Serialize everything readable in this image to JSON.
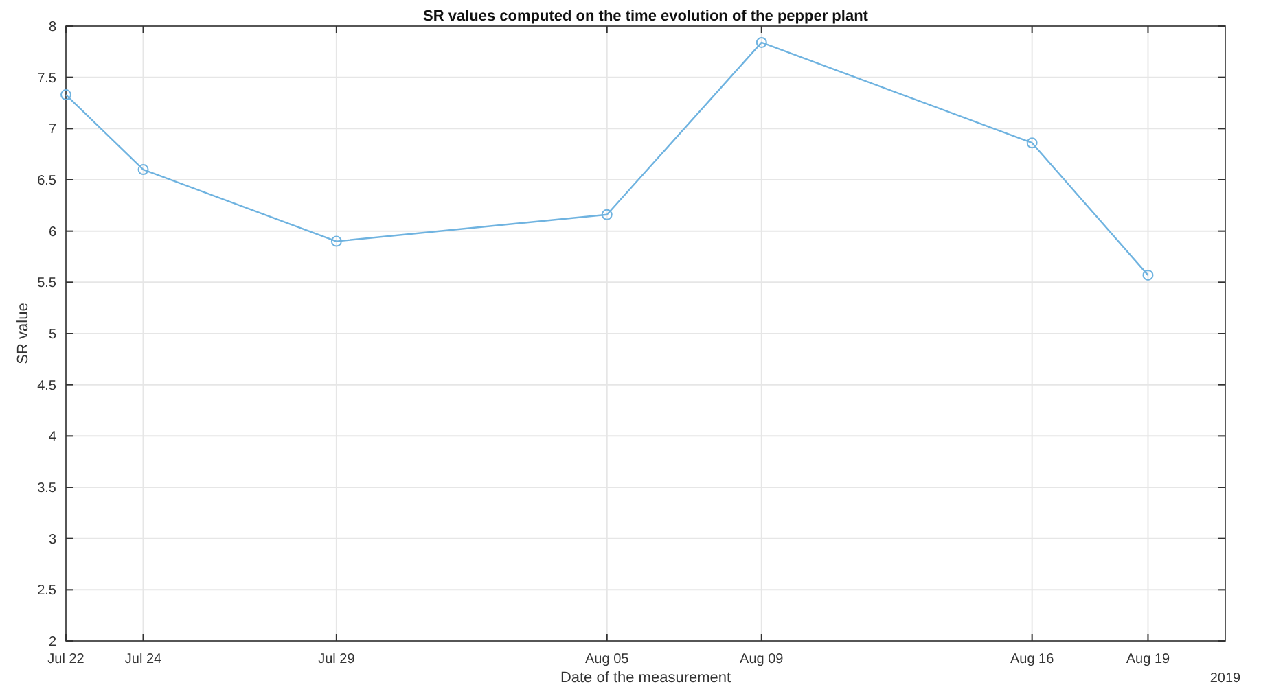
{
  "chart_data": {
    "type": "line",
    "title": "SR values computed on the time evolution of the pepper plant",
    "xlabel": "Date of the measurement",
    "ylabel": "SR value",
    "annotations": [
      "2019"
    ],
    "x": [
      "2019-07-22",
      "2019-07-24",
      "2019-07-29",
      "2019-08-05",
      "2019-08-09",
      "2019-08-16",
      "2019-08-19"
    ],
    "series": [
      {
        "color": "#6fb3e0",
        "values": [
          7.33,
          6.6,
          5.9,
          6.16,
          7.84,
          6.86,
          5.57
        ]
      }
    ],
    "xlim": [
      "2019-07-22",
      "2019-08-21"
    ],
    "xticks": [
      {
        "value": "2019-07-22",
        "label": "Jul 22"
      },
      {
        "value": "2019-07-24",
        "label": "Jul 24"
      },
      {
        "value": "2019-07-29",
        "label": "Jul 29"
      },
      {
        "value": "2019-08-05",
        "label": "Aug 05"
      },
      {
        "value": "2019-08-09",
        "label": "Aug 09"
      },
      {
        "value": "2019-08-16",
        "label": "Aug 16"
      },
      {
        "value": "2019-08-19",
        "label": "Aug 19"
      }
    ],
    "ylim": [
      2,
      8
    ],
    "yticks": [
      2,
      2.5,
      3,
      3.5,
      4,
      4.5,
      5,
      5.5,
      6,
      6.5,
      7,
      7.5,
      8
    ],
    "grid": true,
    "marker": "circle",
    "line_style": "solid"
  }
}
